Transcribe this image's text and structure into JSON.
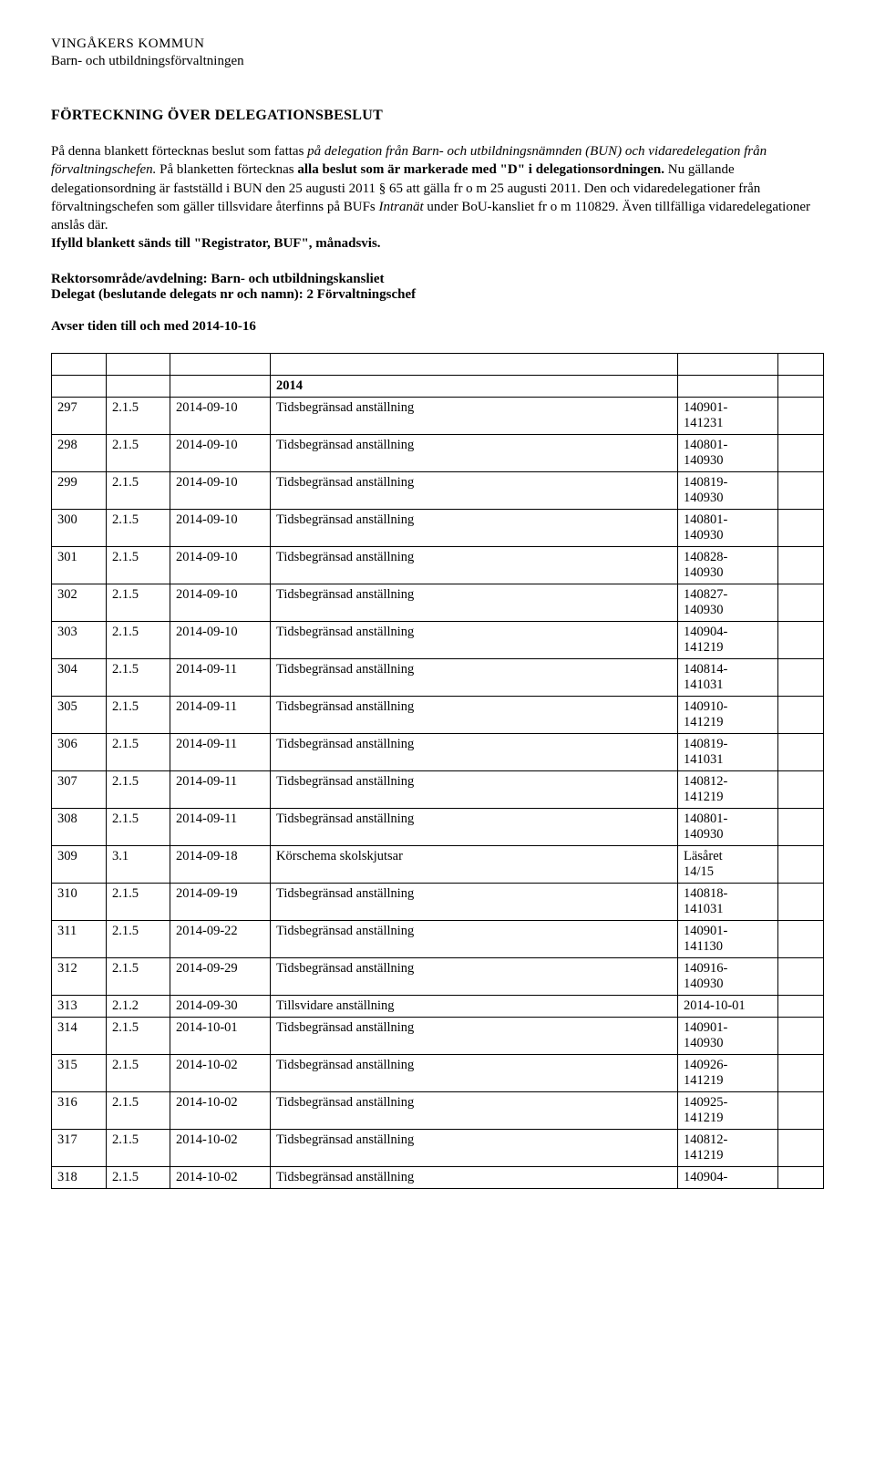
{
  "header": {
    "org": "VINGÅKERS KOMMUN",
    "dept": "Barn- och utbildningsförvaltningen"
  },
  "title": "FÖRTECKNING ÖVER DELEGATIONSBESLUT",
  "intro": {
    "p1_prefix": "På denna blankett förtecknas beslut som fattas ",
    "p1_em1": "på delegation från Barn- och utbildningsnämnden (BUN) och vidaredelegation från förvaltningschefen.",
    "p1_mid": " På blanketten förtecknas ",
    "p1_strong": "alla beslut som är markerade med \"D\" i delegationsordningen.",
    "p1_cont": " Nu gällande delegationsordning är fastställd i BUN den 25 augusti 2011 § 65 att gälla fr o m 25 augusti 2011. Den och vidaredelegationer från förvaltningschefen som gäller tillsvidare återfinns på BUFs ",
    "p1_em2": "Intranät",
    "p1_after_em2": " under BoU-kansliet fr o m 110829. Även tillfälliga vidaredelegationer anslås där.",
    "p1_last": "Ifylld blankett sänds till \"Registrator, BUF\", månadsvis."
  },
  "meta": {
    "line1_label": "Rektorsområde/avdelning: ",
    "line1_value": "Barn- och utbildningskansliet",
    "line2_label": "Delegat (beslutande delegats nr och namn):   ",
    "line2_value": "2  Förvaltningschef"
  },
  "period": "Avser tiden till och med 2014-10-16",
  "yearRow": "2014",
  "rows": [
    {
      "c1": "297",
      "c2": "2.1.5",
      "c3": "2014-09-10",
      "c4": "Tidsbegränsad anställning",
      "c5": "140901-\n141231",
      "c6": ""
    },
    {
      "c1": "298",
      "c2": "2.1.5",
      "c3": "2014-09-10",
      "c4": "Tidsbegränsad anställning",
      "c5": "140801-\n140930",
      "c6": ""
    },
    {
      "c1": "299",
      "c2": "2.1.5",
      "c3": "2014-09-10",
      "c4": "Tidsbegränsad anställning",
      "c5": "140819-\n140930",
      "c6": ""
    },
    {
      "c1": "300",
      "c2": "2.1.5",
      "c3": "2014-09-10",
      "c4": "Tidsbegränsad anställning",
      "c5": "140801-\n140930",
      "c6": ""
    },
    {
      "c1": "301",
      "c2": "2.1.5",
      "c3": "2014-09-10",
      "c4": "Tidsbegränsad anställning",
      "c5": "140828-\n140930",
      "c6": ""
    },
    {
      "c1": "302",
      "c2": "2.1.5",
      "c3": "2014-09-10",
      "c4": "Tidsbegränsad anställning",
      "c5": "140827-\n140930",
      "c6": ""
    },
    {
      "c1": "303",
      "c2": "2.1.5",
      "c3": "2014-09-10",
      "c4": "Tidsbegränsad anställning",
      "c5": "140904-\n141219",
      "c6": ""
    },
    {
      "c1": "304",
      "c2": "2.1.5",
      "c3": "2014-09-11",
      "c4": "Tidsbegränsad anställning",
      "c5": "140814-\n141031",
      "c6": ""
    },
    {
      "c1": "305",
      "c2": "2.1.5",
      "c3": "2014-09-11",
      "c4": "Tidsbegränsad anställning",
      "c5": "140910-\n141219",
      "c6": ""
    },
    {
      "c1": "306",
      "c2": "2.1.5",
      "c3": "2014-09-11",
      "c4": "Tidsbegränsad anställning",
      "c5": "140819-\n141031",
      "c6": ""
    },
    {
      "c1": "307",
      "c2": "2.1.5",
      "c3": "2014-09-11",
      "c4": "Tidsbegränsad anställning",
      "c5": "140812-\n141219",
      "c6": ""
    },
    {
      "c1": "308",
      "c2": "2.1.5",
      "c3": "2014-09-11",
      "c4": "Tidsbegränsad anställning",
      "c5": "140801-\n140930",
      "c6": ""
    },
    {
      "c1": "309",
      "c2": "3.1",
      "c3": "2014-09-18",
      "c4": "Körschema skolskjutsar",
      "c5": "Läsåret\n14/15",
      "c6": ""
    },
    {
      "c1": "310",
      "c2": "2.1.5",
      "c3": "2014-09-19",
      "c4": "Tidsbegränsad anställning",
      "c5": "140818-\n141031",
      "c6": ""
    },
    {
      "c1": "311",
      "c2": "2.1.5",
      "c3": "2014-09-22",
      "c4": "Tidsbegränsad anställning",
      "c5": "140901-\n141130",
      "c6": ""
    },
    {
      "c1": "312",
      "c2": "2.1.5",
      "c3": "2014-09-29",
      "c4": "Tidsbegränsad anställning",
      "c5": "140916-\n140930",
      "c6": ""
    },
    {
      "c1": "313",
      "c2": "2.1.2",
      "c3": "2014-09-30",
      "c4": "Tillsvidare anställning",
      "c5": "2014-10-01",
      "c6": ""
    },
    {
      "c1": "314",
      "c2": "2.1.5",
      "c3": "2014-10-01",
      "c4": "Tidsbegränsad anställning",
      "c5": "140901-\n140930",
      "c6": ""
    },
    {
      "c1": "315",
      "c2": "2.1.5",
      "c3": "2014-10-02",
      "c4": "Tidsbegränsad anställning",
      "c5": "140926-\n141219",
      "c6": ""
    },
    {
      "c1": "316",
      "c2": "2.1.5",
      "c3": "2014-10-02",
      "c4": "Tidsbegränsad anställning",
      "c5": "140925-\n141219",
      "c6": ""
    },
    {
      "c1": "317",
      "c2": "2.1.5",
      "c3": "2014-10-02",
      "c4": "Tidsbegränsad anställning",
      "c5": "140812-\n141219",
      "c6": ""
    },
    {
      "c1": "318",
      "c2": "2.1.5",
      "c3": "2014-10-02",
      "c4": "Tidsbegränsad anställning",
      "c5": "140904-",
      "c6": ""
    }
  ]
}
